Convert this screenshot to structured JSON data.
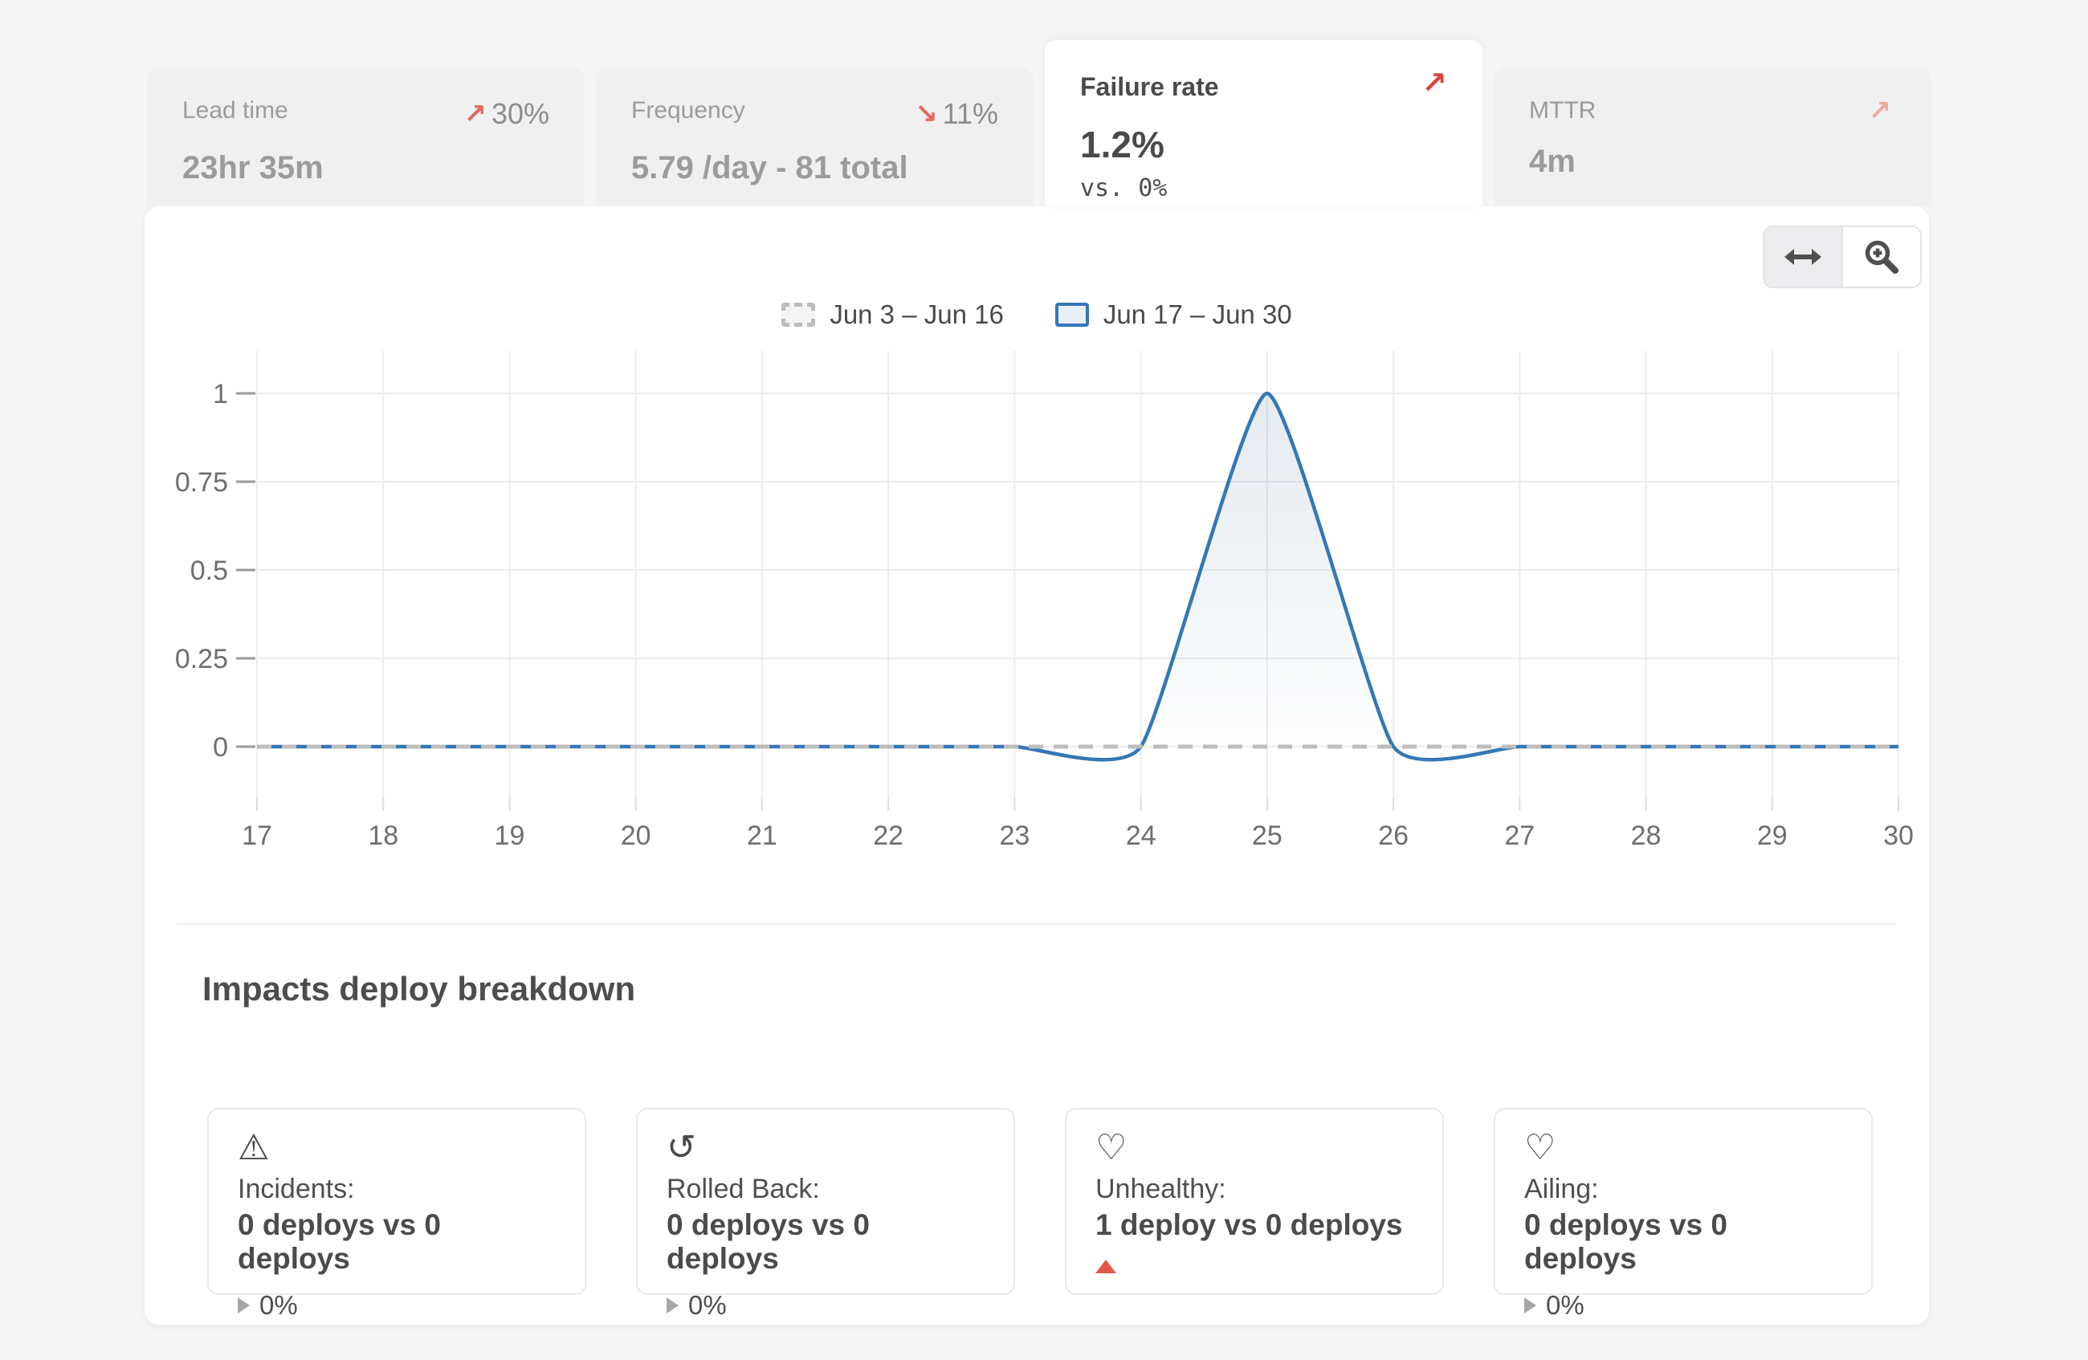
{
  "glyphs": {
    "arrow_up_right": "↗",
    "arrow_down_right": "↘",
    "warning": "⚠",
    "rollback": "↺",
    "heart": "♡"
  },
  "colors": {
    "blue": "#3477b5",
    "gray_dash": "#bdbdbd",
    "grid": "#ececee",
    "axis_text": "#6e6e6e",
    "tick": "#9a9a9a",
    "x_tick": "#dcdcdc",
    "red": "#d6453d",
    "salmon": "#e2685e",
    "pale_red": "#efa8a1",
    "fill_base": "#5a7d9b"
  },
  "metrics": {
    "tabs": [
      {
        "label": "Lead time",
        "value": "23hr 35m",
        "change": "30%",
        "trend": "up",
        "selected": false
      },
      {
        "label": "Frequency",
        "value": "5.79 /day - 81 total",
        "change": "11%",
        "trend": "down",
        "selected": false
      },
      {
        "label": "Failure rate",
        "value": "1.2%",
        "comparison": "vs. 0%",
        "trend": "up",
        "selected": true
      },
      {
        "label": "MTTR",
        "value": "4m",
        "change": "",
        "trend": "up",
        "selected": false
      }
    ]
  },
  "toolbar": {
    "buttons": [
      {
        "name": "pan-horizontal",
        "active": true
      },
      {
        "name": "zoom-in",
        "active": false
      }
    ]
  },
  "chart_data": {
    "type": "area",
    "x": [
      17,
      18,
      19,
      20,
      21,
      22,
      23,
      24,
      25,
      26,
      27,
      28,
      29,
      30
    ],
    "series": [
      {
        "name": "Jun 3 – Jun 16",
        "style": "dashed-gray",
        "values": [
          0,
          0,
          0,
          0,
          0,
          0,
          0,
          0,
          0,
          0,
          0,
          0,
          0,
          0
        ]
      },
      {
        "name": "Jun 17 – Jun 30",
        "style": "solid-blue-area",
        "values": [
          0,
          0,
          0,
          0,
          0,
          0,
          0,
          0,
          1,
          0,
          0,
          0,
          0,
          0
        ]
      }
    ],
    "yticks": [
      0,
      0.25,
      0.5,
      0.75,
      1
    ],
    "ylim": [
      -0.06,
      1.12
    ],
    "grid": true,
    "legend_position": "top-center"
  },
  "breakdown": {
    "title": "Impacts deploy breakdown",
    "cards": [
      {
        "icon": "warning",
        "label": "Incidents:",
        "value": "0 deploys vs 0 deploys",
        "delta": "0%",
        "delta_trend": "flat"
      },
      {
        "icon": "rollback",
        "label": "Rolled Back:",
        "value": "0 deploys vs 0 deploys",
        "delta": "0%",
        "delta_trend": "flat"
      },
      {
        "icon": "heart",
        "label": "Unhealthy:",
        "value": "1 deploy vs 0 deploys",
        "delta": "",
        "delta_trend": "up"
      },
      {
        "icon": "heart",
        "label": "Ailing:",
        "value": "0 deploys vs 0 deploys",
        "delta": "0%",
        "delta_trend": "flat"
      }
    ]
  }
}
